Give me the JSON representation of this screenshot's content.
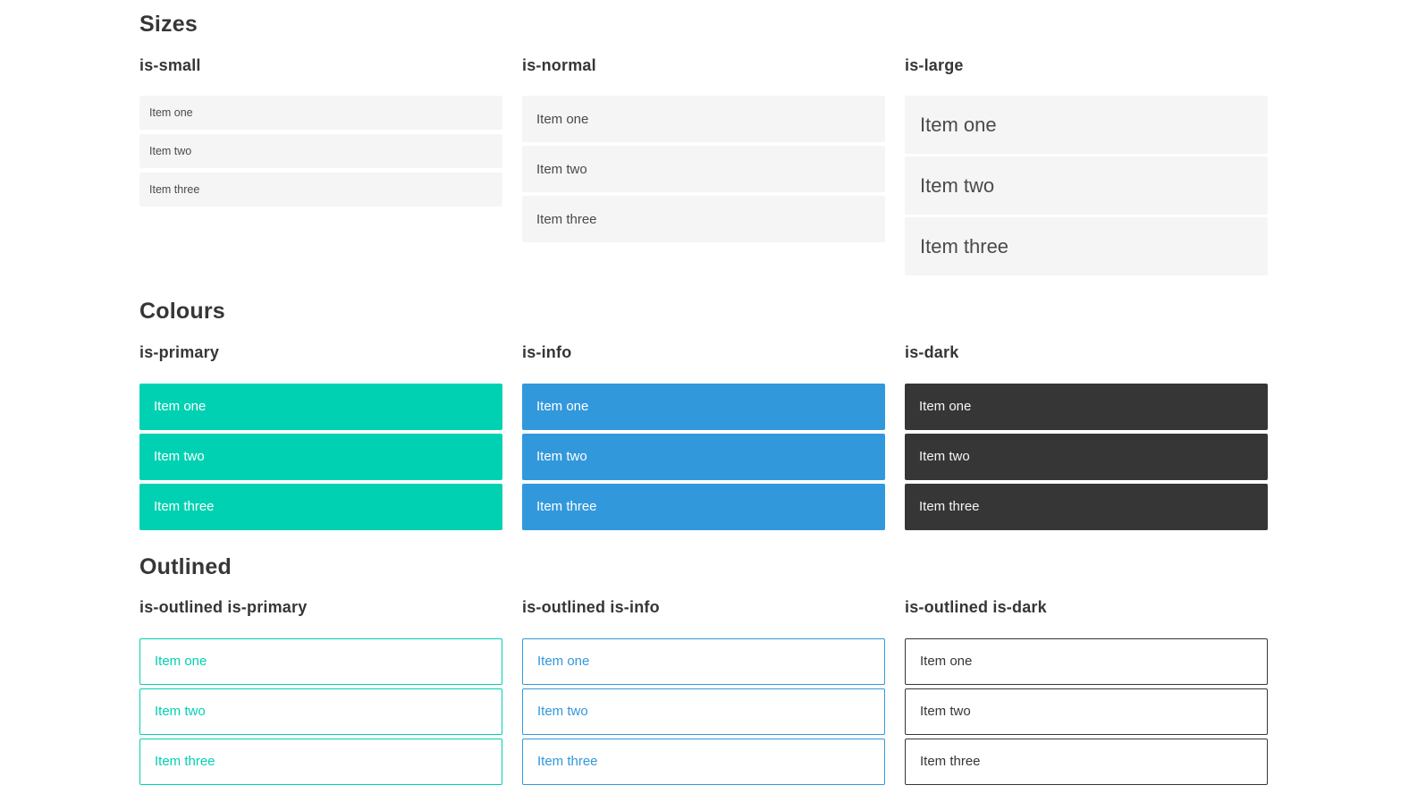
{
  "sections": [
    {
      "title": "Sizes",
      "groups": [
        {
          "label": "is-small",
          "items": [
            "Item one",
            "Item two",
            "Item three"
          ]
        },
        {
          "label": "is-normal",
          "items": [
            "Item one",
            "Item two",
            "Item three"
          ]
        },
        {
          "label": "is-large",
          "items": [
            "Item one",
            "Item two",
            "Item three"
          ]
        }
      ]
    },
    {
      "title": "Colours",
      "groups": [
        {
          "label": "is-primary",
          "items": [
            "Item one",
            "Item two",
            "Item three"
          ]
        },
        {
          "label": "is-info",
          "items": [
            "Item one",
            "Item two",
            "Item three"
          ]
        },
        {
          "label": "is-dark",
          "items": [
            "Item one",
            "Item two",
            "Item three"
          ]
        }
      ]
    },
    {
      "title": "Outlined",
      "groups": [
        {
          "label": "is-outlined is-primary",
          "items": [
            "Item one",
            "Item two",
            "Item three"
          ]
        },
        {
          "label": "is-outlined is-info",
          "items": [
            "Item one",
            "Item two",
            "Item three"
          ]
        },
        {
          "label": "is-outlined is-dark",
          "items": [
            "Item one",
            "Item two",
            "Item three"
          ]
        }
      ]
    }
  ],
  "colors": {
    "primary": "#00d1b2",
    "info": "#3298dc",
    "dark": "#363636",
    "item_bg_light": "#f5f5f5",
    "item_text": "#4a4a4a",
    "heading_text": "#363636"
  }
}
